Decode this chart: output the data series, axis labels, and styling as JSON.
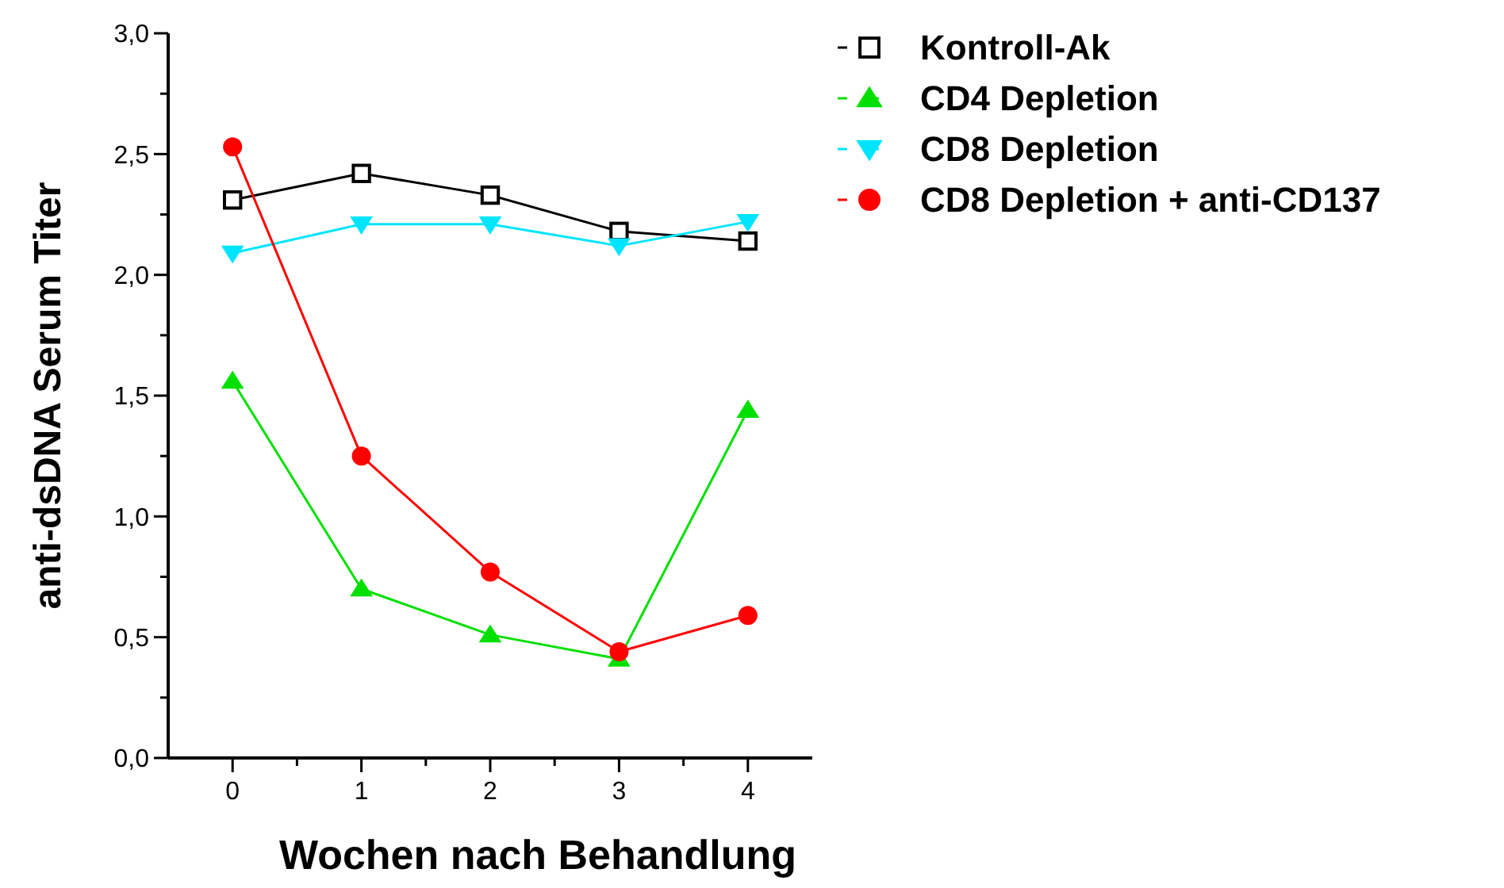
{
  "chart_data": {
    "type": "line",
    "xlabel": "Wochen nach Behandlung",
    "ylabel": "anti-dsDNA Serum Titer",
    "x": [
      0,
      1,
      2,
      3,
      4
    ],
    "xlim": [
      -0.5,
      4.5
    ],
    "xticks": [
      0,
      {
        "value": 0.5,
        "label": null
      },
      1,
      {
        "value": 1.5,
        "label": null
      },
      2,
      {
        "value": 2.5,
        "label": null
      },
      3,
      {
        "value": 3.5,
        "label": null
      },
      4
    ],
    "ylim": [
      0,
      3
    ],
    "yticks": [
      {
        "value": 0,
        "label": "0,0"
      },
      {
        "value": 0.25,
        "label": null
      },
      {
        "value": 0.5,
        "label": "0,5"
      },
      {
        "value": 0.75,
        "label": null
      },
      {
        "value": 1,
        "label": "1,0"
      },
      {
        "value": 1.25,
        "label": null
      },
      {
        "value": 1.5,
        "label": "1,5"
      },
      {
        "value": 1.75,
        "label": null
      },
      {
        "value": 2,
        "label": "2,0"
      },
      {
        "value": 2.25,
        "label": null
      },
      {
        "value": 2.5,
        "label": "2,5"
      },
      {
        "value": 2.75,
        "label": null
      },
      {
        "value": 3,
        "label": "3,0"
      }
    ],
    "legend": "top right",
    "grid": false,
    "line_style": "solid",
    "series": [
      {
        "name": "Kontroll-Ak",
        "color": "#000000",
        "marker": "square",
        "values": [
          2.31,
          2.42,
          2.33,
          2.18,
          2.14
        ]
      },
      {
        "name": "CD4 Depletion",
        "color": "#00e000",
        "marker": "triangle",
        "values": [
          1.56,
          0.7,
          0.51,
          0.41,
          1.44
        ]
      },
      {
        "name": "CD8 Depletion",
        "color": "#00e5ff",
        "marker": "triangle-down",
        "values": [
          2.09,
          2.21,
          2.21,
          2.12,
          2.22
        ]
      },
      {
        "name": "CD8 Depletion + anti-CD137",
        "color": "#ff0000",
        "marker": "circle",
        "values": [
          2.53,
          1.25,
          0.77,
          0.44,
          0.59
        ]
      }
    ]
  }
}
